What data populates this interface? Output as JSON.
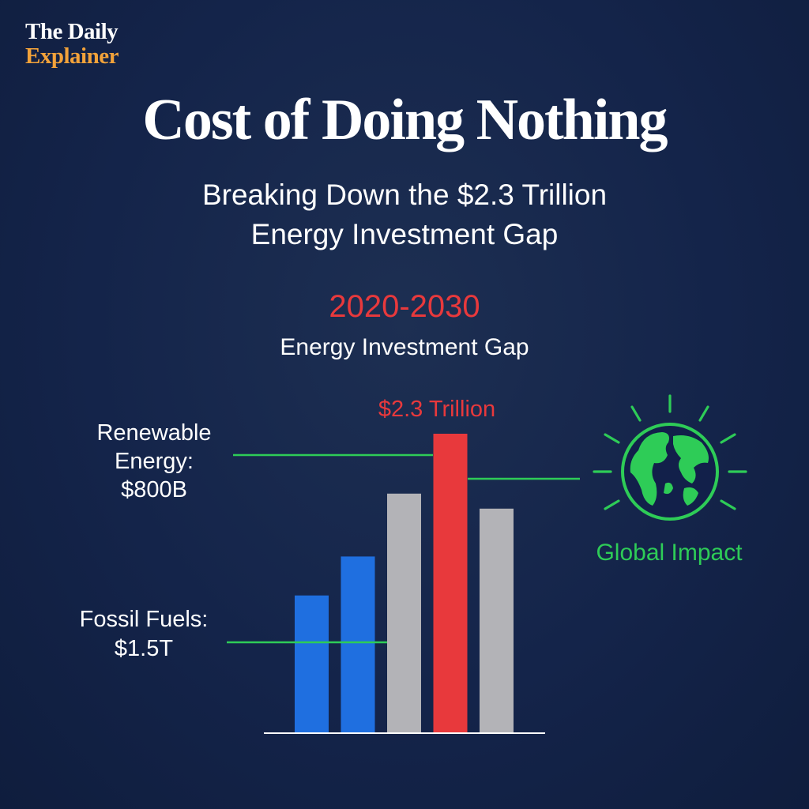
{
  "brand": {
    "line1": "The Daily",
    "line2": "Explainer"
  },
  "title": "Cost of Doing Nothing",
  "subtitle": {
    "line1": "Breaking Down the $2.3 Trillion",
    "line2": "Energy Investment Gap"
  },
  "period": "2020-2030",
  "gap_label": "Energy Investment Gap",
  "annotations": {
    "renewable": [
      "Renewable",
      "Energy:",
      "$800B"
    ],
    "fossil": [
      "Fossil Fuels:",
      "$1.5T"
    ],
    "peak": "$2.3 Trillion",
    "impact": "Global Impact"
  },
  "colors": {
    "blue": "#1f6fe0",
    "gray": "#b3b3b7",
    "red": "#e8393c",
    "green": "#2ecc57",
    "brand_orange": "#f2a23a"
  },
  "icons": [
    "globe-icon"
  ],
  "chart_data": {
    "type": "bar",
    "title": "Energy Investment Gap",
    "bars": [
      {
        "color": "blue",
        "value": 0.46
      },
      {
        "color": "blue",
        "value": 0.59
      },
      {
        "color": "gray",
        "value": 0.8
      },
      {
        "color": "red",
        "value": 1.0
      },
      {
        "color": "gray",
        "value": 0.75
      }
    ],
    "labeled_values": {
      "renewable_energy": "$800B",
      "fossil_fuels": "$1.5T",
      "peak": "$2.3 Trillion"
    },
    "grid": false
  }
}
